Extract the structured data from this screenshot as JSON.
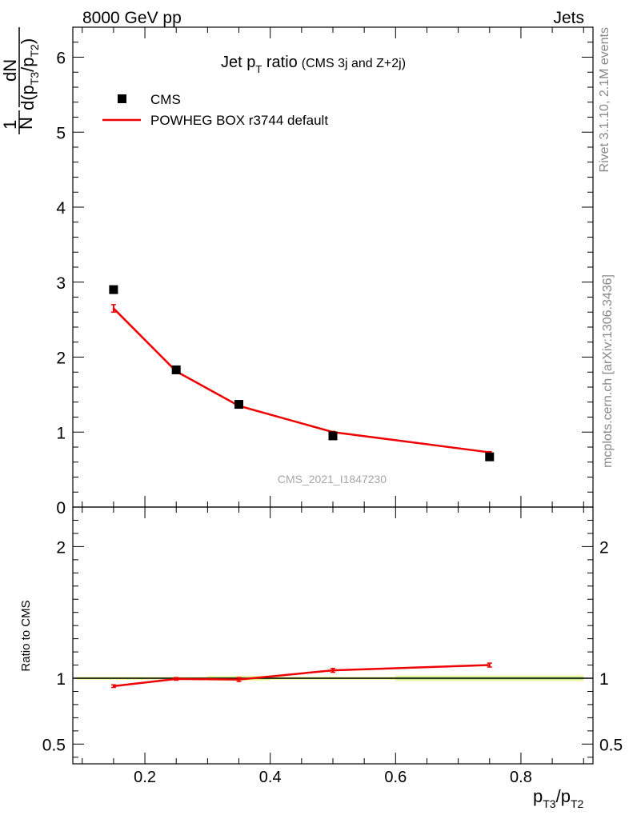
{
  "header": {
    "left": "8000 GeV pp",
    "right": "Jets"
  },
  "side_labels": {
    "rivet": "Rivet 3.1.10,  2.1M events",
    "mcplots": "mcplots.cern.ch [arXiv:1306.3436]"
  },
  "watermark": "CMS_2021_I1847230",
  "title": {
    "main": "Jet p",
    "main_sub": "T",
    "main_tail": " ratio",
    "small": "(CMS 3j and Z+2j)"
  },
  "legend": {
    "data": "CMS",
    "mc": "POWHEG BOX r3744 default"
  },
  "y_label": {
    "numerator_one": "1",
    "denominator_n": "N",
    "dN": "dN",
    "d": "d(p",
    "sub1": "T3",
    "mid": "/p",
    "sub2": "T2",
    "close": ")"
  },
  "x_label": {
    "p1": "p",
    "sub1": "T3",
    "slash": "/p",
    "sub2": "T2"
  },
  "ratio_label": "Ratio to CMS",
  "colors": {
    "data": "#000000",
    "mc": "#ee0000",
    "band_outer": "#f2f5a0",
    "band_inner": "#b5e68a",
    "ratio_line": "#000000"
  },
  "chart_data": [
    {
      "type": "scatter",
      "panel": "main",
      "xlim": [
        0.085,
        0.915
      ],
      "ylim": [
        0,
        6.4
      ],
      "yticks": [
        "0",
        "1",
        "2",
        "3",
        "4",
        "5",
        "6"
      ],
      "series": [
        {
          "name": "CMS",
          "x": [
            0.15,
            0.25,
            0.35,
            0.5,
            0.75
          ],
          "y": [
            2.9,
            1.83,
            1.37,
            0.95,
            0.67
          ]
        },
        {
          "name": "POWHEG BOX r3744 default",
          "x": [
            0.15,
            0.25,
            0.35,
            0.5,
            0.75
          ],
          "y": [
            2.65,
            1.81,
            1.35,
            1.0,
            0.73
          ],
          "yerr": [
            0.05,
            0.02,
            0.02,
            0.01,
            0.01
          ]
        }
      ]
    },
    {
      "type": "line",
      "panel": "ratio",
      "xlim": [
        0.085,
        0.915
      ],
      "ylim": [
        0.35,
        2.3
      ],
      "xticks": [
        "0.2",
        "0.4",
        "0.6",
        "0.8"
      ],
      "yticks": [
        "0.5",
        "1",
        "2"
      ],
      "reference": 1,
      "series": [
        {
          "name": "POWHEG BOX r3744 default",
          "x": [
            0.15,
            0.25,
            0.35,
            0.5,
            0.75
          ],
          "y": [
            0.94,
            0.995,
            0.99,
            1.06,
            1.1
          ],
          "yerr": [
            0.01,
            0.01,
            0.015,
            0.015,
            0.015
          ]
        }
      ]
    }
  ]
}
